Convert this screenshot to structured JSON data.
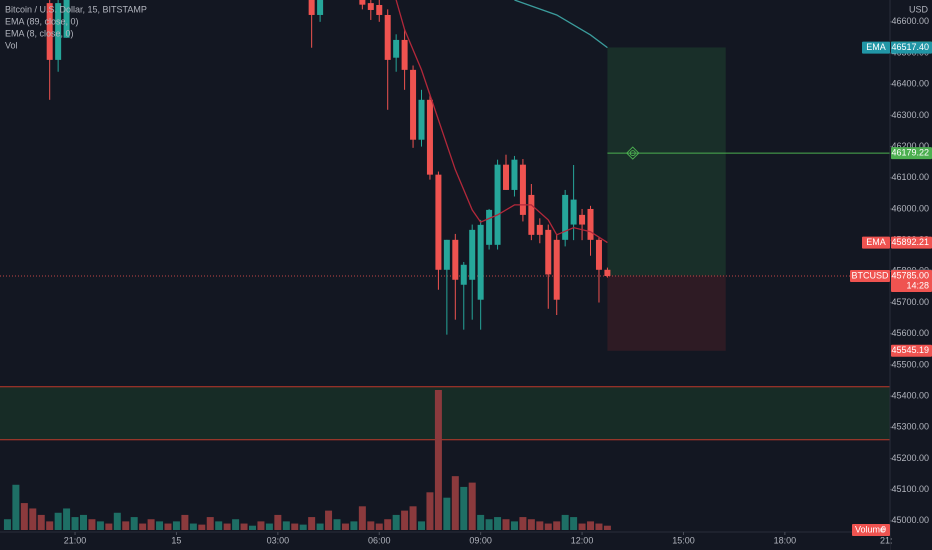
{
  "chart_data": {
    "type": "candlestick",
    "title": "Bitcoin / U.S. Dollar, 15, BITSTAMP",
    "indicators": [
      "EMA (89, close, 0)",
      "EMA (8, close, 0)",
      "Vol"
    ],
    "axis_label": "USD",
    "x": [
      -3,
      -2,
      -1,
      28,
      29,
      34,
      35,
      36,
      37,
      38,
      39,
      40,
      41,
      42,
      43,
      44,
      45,
      46,
      47,
      48,
      49,
      50,
      51,
      52,
      53,
      54,
      55,
      56,
      57,
      58,
      59,
      60,
      61,
      62,
      63
    ],
    "open": [
      46660,
      46478,
      46549,
      46700,
      46622,
      46680,
      46660,
      46654,
      46622,
      46485,
      46542,
      46446,
      46222,
      46350,
      46110,
      45805,
      45901,
      45757,
      45773,
      45709,
      45885,
      45885,
      46142,
      46061,
      46142,
      46045,
      45949,
      45933,
      45901,
      45901,
      45950,
      45981,
      46000,
      45901,
      45805
    ],
    "high": [
      46700,
      46700,
      46700,
      46720,
      46720,
      46690,
      46680,
      46670,
      46640,
      46560,
      46575,
      46460,
      46382,
      46366,
      46120,
      45901,
      45920,
      45830,
      45950,
      45965,
      46000,
      46158,
      46174,
      46170,
      46160,
      46080,
      45970,
      45950,
      45920,
      46061,
      46141,
      46000,
      46010,
      45910,
      45812
    ],
    "low": [
      46350,
      46440,
      46549,
      46517,
      46600,
      46640,
      46606,
      46600,
      46318,
      46440,
      46382,
      46196,
      46200,
      46094,
      45741,
      45597,
      45645,
      45613,
      45645,
      45613,
      45870,
      45870,
      46061,
      46040,
      45960,
      45900,
      45890,
      45680,
      45660,
      45880,
      45900,
      45900,
      45850,
      45700,
      45780
    ],
    "close": [
      46478,
      46660,
      46680,
      46622,
      46690,
      46655,
      46638,
      46622,
      46478,
      46542,
      46446,
      46222,
      46350,
      46110,
      45805,
      45901,
      45773,
      45821,
      45933,
      45949,
      45997,
      46142,
      46061,
      46158,
      45981,
      45917,
      45917,
      45790,
      45709,
      46045,
      46030,
      45950,
      45901,
      45805,
      45785
    ],
    "up_color": "#26a69a",
    "down_color": "#ef5350",
    "series": [
      {
        "name": "EMA (89, close, 0)",
        "color": "#3b9c9c",
        "x": [
          52,
          57,
          61,
          63
        ],
        "values": [
          46670,
          46622,
          46558,
          46517.4
        ]
      },
      {
        "name": "EMA (8, close, 0)",
        "color": "#b2283a",
        "x": [
          38,
          39,
          41,
          43,
          45,
          47,
          48,
          50,
          52,
          54,
          56,
          57,
          59,
          61,
          63
        ],
        "values": [
          46670,
          46575,
          46446,
          46286,
          46126,
          45997,
          45958,
          45981,
          46013,
          46013,
          45965,
          45917,
          45940,
          45927,
          45892.21
        ]
      }
    ],
    "volume": {
      "x": [
        -8,
        -7,
        -6,
        -5,
        -4,
        -3,
        -2,
        -1,
        0,
        1,
        2,
        3,
        4,
        5,
        6,
        7,
        8,
        9,
        10,
        11,
        12,
        13,
        14,
        15,
        16,
        17,
        18,
        19,
        20,
        21,
        22,
        23,
        24,
        25,
        26,
        27,
        28,
        29,
        30,
        31,
        32,
        33,
        34,
        35,
        36,
        37,
        38,
        39,
        40,
        41,
        42,
        43,
        44,
        45,
        46,
        47,
        48,
        49,
        50,
        51,
        52,
        53,
        54,
        55,
        56,
        57,
        58,
        59,
        60,
        61,
        62,
        63
      ],
      "values": [
        10,
        42,
        25,
        20,
        14,
        8,
        16,
        20,
        12,
        14,
        10,
        8,
        6,
        16,
        8,
        12,
        6,
        10,
        8,
        6,
        8,
        14,
        6,
        5,
        12,
        8,
        6,
        10,
        6,
        4,
        8,
        6,
        14,
        8,
        6,
        5,
        12,
        6,
        18,
        10,
        6,
        8,
        22,
        8,
        6,
        10,
        14,
        18,
        22,
        8,
        35,
        130,
        30,
        50,
        40,
        44,
        14,
        10,
        12,
        10,
        8,
        12,
        10,
        8,
        6,
        8,
        14,
        12,
        6,
        8,
        6,
        4
      ],
      "colors": [
        "#1e6f65",
        "#1e6f65",
        "#8b3a3d",
        "#8b3a3d",
        "#8b3a3d",
        "#8b3a3d",
        "#1e6f65",
        "#1e6f65",
        "#1e6f65",
        "#1e6f65",
        "#8b3a3d",
        "#1e6f65",
        "#8b3a3d",
        "#1e6f65",
        "#8b3a3d",
        "#1e6f65",
        "#8b3a3d",
        "#8b3a3d",
        "#1e6f65",
        "#8b3a3d",
        "#1e6f65",
        "#8b3a3d",
        "#1e6f65",
        "#8b3a3d",
        "#8b3a3d",
        "#1e6f65",
        "#8b3a3d",
        "#1e6f65",
        "#8b3a3d",
        "#1e6f65",
        "#8b3a3d",
        "#1e6f65",
        "#8b3a3d",
        "#1e6f65",
        "#8b3a3d",
        "#1e6f65",
        "#8b3a3d",
        "#1e6f65",
        "#8b3a3d",
        "#1e6f65",
        "#8b3a3d",
        "#1e6f65",
        "#8b3a3d",
        "#8b3a3d",
        "#8b3a3d",
        "#8b3a3d",
        "#1e6f65",
        "#8b3a3d",
        "#8b3a3d",
        "#1e6f65",
        "#8b3a3d",
        "#8b3a3d",
        "#1e6f65",
        "#8b3a3d",
        "#1e6f65",
        "#8b3a3d",
        "#1e6f65",
        "#1e6f65",
        "#1e6f65",
        "#8b3a3d",
        "#1e6f65",
        "#8b3a3d",
        "#8b3a3d",
        "#8b3a3d",
        "#8b3a3d",
        "#8b3a3d",
        "#1e6f65",
        "#1e6f65",
        "#8b3a3d",
        "#8b3a3d",
        "#8b3a3d",
        "#8b3a3d"
      ],
      "tag": "Volume",
      "last": 0
    },
    "position": {
      "x": [
        63,
        77
      ],
      "target": 46517.81,
      "entry": 45786.73,
      "stop": 45545.19
    },
    "target_line": {
      "value": 46179.22,
      "x": 63,
      "marker_x": 66,
      "color": "#4caf50"
    },
    "zone": {
      "values": [
        45260,
        45430
      ],
      "border_color": "#c0392b",
      "fill": "#1b3a2a"
    },
    "last_price": {
      "tag": "BTCUSD",
      "value": 45785,
      "label": "45785.00",
      "countdown": "14:28",
      "color": "#ef5350"
    },
    "price_labels": [
      {
        "value": 46517.4,
        "label": "46517.40",
        "tag": "EMA",
        "color": "#2196a6"
      },
      {
        "value": 45892.21,
        "tag": "EMA",
        "color": "#ef5350"
      }
    ],
    "xlim": [
      -8.88,
      96.44
    ],
    "xticks": [
      {
        "value": 0,
        "label": "21:00"
      },
      {
        "value": 12,
        "label": "15"
      },
      {
        "value": 24,
        "label": "03:00"
      },
      {
        "value": 36,
        "label": "06:00"
      },
      {
        "value": 48,
        "label": "09:00"
      },
      {
        "value": 60,
        "label": "12:00"
      },
      {
        "value": 72,
        "label": "15:00"
      },
      {
        "value": 84,
        "label": "18:00"
      },
      {
        "value": 96,
        "label": "21:"
      }
    ],
    "ylim": [
      44945,
      46670
    ],
    "yticks": [
      {
        "value": 46600,
        "label": "46600.00"
      },
      {
        "value": 46500,
        "label": "46500.00"
      },
      {
        "value": 46400,
        "label": "46400.00"
      },
      {
        "value": 46300,
        "label": "46300.00"
      },
      {
        "value": 46200,
        "label": "46200.00"
      },
      {
        "value": 46100,
        "label": "46100.00"
      },
      {
        "value": 46000,
        "label": "46000.00"
      },
      {
        "value": 45900,
        "label": "45900.00"
      },
      {
        "value": 45800,
        "label": "45800.00"
      },
      {
        "value": 45700,
        "label": "45700.00"
      },
      {
        "value": 45600,
        "label": "45600.00"
      },
      {
        "value": 45500,
        "label": "45500.00"
      },
      {
        "value": 45400,
        "label": "45400.00"
      },
      {
        "value": 45300,
        "label": "45300.00"
      },
      {
        "value": 45200,
        "label": "45200.00"
      },
      {
        "value": 45100,
        "label": "45100.00"
      },
      {
        "value": 45000,
        "label": "45000.00"
      }
    ],
    "grid": false
  }
}
